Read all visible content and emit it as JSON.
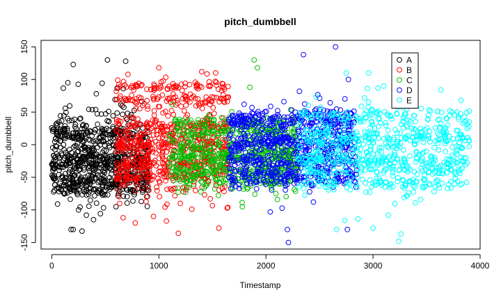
{
  "chart_data": {
    "type": "scatter",
    "title": "pitch_dumbbell",
    "xlabel": "Timestamp",
    "ylabel": "pitch_dumbbell",
    "xlim": [
      -100,
      4000
    ],
    "ylim": [
      -160,
      160
    ],
    "x_ticks": [
      0,
      1000,
      2000,
      3000,
      4000
    ],
    "y_ticks": [
      -150,
      -100,
      -50,
      0,
      50,
      100,
      150
    ],
    "x_tick_labels": [
      "0",
      "1000",
      "2000",
      "3000",
      "4000"
    ],
    "y_tick_labels": [
      "-150",
      "-100",
      "-50",
      "0",
      "50",
      "100",
      "150"
    ],
    "grid": false,
    "marker": "open-circle",
    "legend_position": "top-right",
    "series": [
      {
        "name": "A",
        "color": "#000000",
        "x_range": [
          0,
          900
        ],
        "center": -10,
        "spread": 38,
        "bands": [
          -70,
          -60,
          -50,
          -30,
          -20,
          15
        ],
        "values": [
          [
            200,
            -130
          ],
          [
            200,
            123
          ],
          [
            250,
            -100
          ],
          [
            390,
            -115
          ],
          [
            600,
            -95
          ],
          [
            180,
            -130
          ],
          [
            520,
            130
          ],
          [
            690,
            128
          ],
          [
            150,
            95
          ]
        ]
      },
      {
        "name": "B",
        "color": "#ff0000",
        "x_range": [
          600,
          1650
        ],
        "center": -5,
        "spread": 40,
        "bands": [
          -50,
          -30,
          0,
          30,
          70,
          90
        ],
        "values": [
          [
            780,
            -120
          ],
          [
            950,
            -110
          ],
          [
            1560,
            -128
          ],
          [
            1000,
            118
          ],
          [
            1530,
            110
          ],
          [
            1400,
            112
          ],
          [
            1200,
            -90
          ]
        ]
      },
      {
        "name": "C",
        "color": "#00bf00",
        "x_range": [
          1100,
          2300
        ],
        "center": -15,
        "spread": 25,
        "bands": [
          -55,
          -40,
          -20,
          20,
          35
        ],
        "values": [
          [
            1890,
            130
          ],
          [
            1920,
            118
          ],
          [
            1850,
            88
          ],
          [
            1780,
            -95
          ],
          [
            1250,
            -73
          ]
        ]
      },
      {
        "name": "D",
        "color": "#0000ff",
        "x_range": [
          1650,
          2850
        ],
        "center": 0,
        "spread": 30,
        "bands": [
          -55,
          -45,
          -25,
          5,
          35,
          45
        ],
        "values": [
          [
            2350,
            138
          ],
          [
            2650,
            150
          ],
          [
            2200,
            -130
          ],
          [
            2210,
            -150
          ],
          [
            2760,
            -130
          ],
          [
            2040,
            -103
          ],
          [
            2770,
            100
          ]
        ]
      },
      {
        "name": "E",
        "color": "#00ffff",
        "x_range": [
          2300,
          3900
        ],
        "center": -5,
        "spread": 35,
        "bands": [
          -60,
          -40,
          -25,
          10,
          45
        ],
        "values": [
          [
            3240,
            -148
          ],
          [
            3260,
            -137
          ],
          [
            2660,
            -130
          ],
          [
            2750,
            110
          ],
          [
            2960,
            110
          ],
          [
            3100,
            90
          ],
          [
            3000,
            -128
          ]
        ]
      }
    ]
  }
}
